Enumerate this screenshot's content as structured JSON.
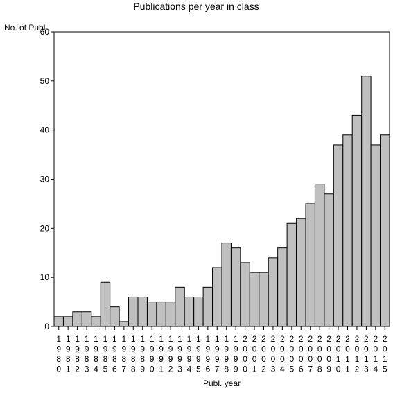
{
  "chart_data": {
    "type": "bar",
    "title": "Publications per year in class",
    "xlabel": "Publ. year",
    "ylabel": "No. of Publ.",
    "ylim": [
      0,
      60
    ],
    "yticks": [
      0,
      10,
      20,
      30,
      40,
      50,
      60
    ],
    "grid": false,
    "bar_color": "#c0c0c0",
    "categories": [
      "1980",
      "1981",
      "1982",
      "1983",
      "1984",
      "1985",
      "1986",
      "1987",
      "1988",
      "1989",
      "1990",
      "1991",
      "1992",
      "1993",
      "1994",
      "1995",
      "1996",
      "1997",
      "1998",
      "1999",
      "2000",
      "2001",
      "2002",
      "2003",
      "2004",
      "2005",
      "2006",
      "2007",
      "2008",
      "2009",
      "2010",
      "2011",
      "2012",
      "2013",
      "2014",
      "2015"
    ],
    "values": [
      2,
      2,
      3,
      3,
      2,
      9,
      4,
      1,
      6,
      6,
      5,
      5,
      5,
      8,
      6,
      6,
      8,
      12,
      17,
      16,
      13,
      11,
      11,
      14,
      16,
      21,
      22,
      25,
      29,
      27,
      37,
      39,
      43,
      51,
      37,
      39
    ]
  }
}
